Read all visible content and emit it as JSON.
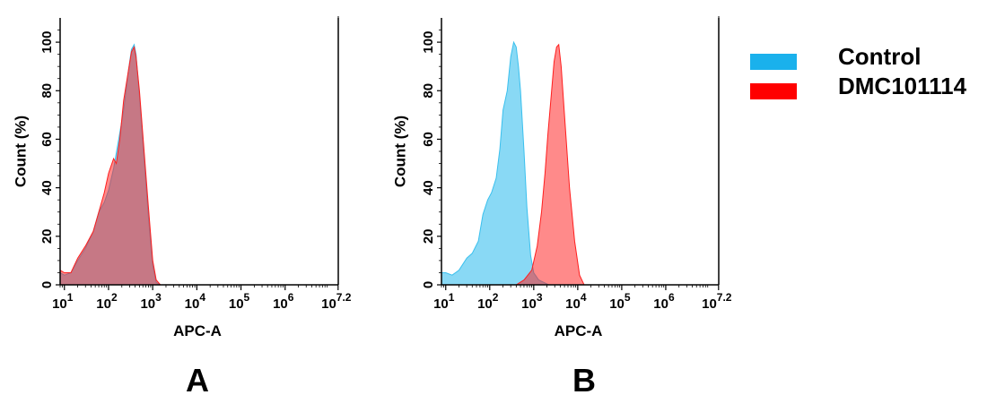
{
  "colors": {
    "control": "#3ac0ee",
    "dmc": "#ff1e1e",
    "overlap": "#7e8eab"
  },
  "legend": {
    "items": [
      {
        "label": "Control",
        "color": "#1ab1ec"
      },
      {
        "label": "DMC101114",
        "color": "#ff0000"
      }
    ]
  },
  "chart_data": [
    {
      "panel_label": "A",
      "type": "area",
      "xlabel": "APC-A",
      "ylabel": "Count  (%)",
      "x_scale": "log",
      "xlim": [
        8,
        16000000
      ],
      "ylim": [
        0,
        110
      ],
      "y_ticks": [
        0,
        20,
        40,
        60,
        80,
        100
      ],
      "x_ticks": [
        {
          "value": 10,
          "base": "10",
          "exp": "1"
        },
        {
          "value": 100,
          "base": "10",
          "exp": "2"
        },
        {
          "value": 1000,
          "base": "10",
          "exp": "3"
        },
        {
          "value": 10000,
          "base": "10",
          "exp": "4"
        },
        {
          "value": 100000,
          "base": "10",
          "exp": "5"
        },
        {
          "value": 1000000,
          "base": "10",
          "exp": "6"
        },
        {
          "value": 15848932,
          "base": "10",
          "exp": "7.2"
        }
      ],
      "series": [
        {
          "name": "Control",
          "x": [
            8,
            10,
            14,
            20,
            30,
            45,
            60,
            80,
            100,
            130,
            170,
            220,
            280,
            330,
            380,
            420,
            500,
            620,
            800,
            1000,
            1200,
            1500
          ],
          "y": [
            5,
            4,
            5,
            10,
            15,
            22,
            30,
            34,
            39,
            48,
            60,
            72,
            88,
            97,
            99,
            95,
            78,
            55,
            28,
            8,
            1,
            0
          ]
        },
        {
          "name": "DMC101114",
          "x": [
            8,
            10,
            14,
            20,
            30,
            45,
            60,
            80,
            100,
            130,
            150,
            180,
            220,
            280,
            330,
            380,
            420,
            500,
            620,
            800,
            1000,
            1200,
            1500
          ],
          "y": [
            6,
            5,
            5,
            11,
            16,
            22,
            30,
            38,
            46,
            52,
            50,
            60,
            76,
            88,
            96,
            98,
            94,
            80,
            58,
            32,
            10,
            2,
            0
          ]
        }
      ]
    },
    {
      "panel_label": "B",
      "type": "area",
      "xlabel": "APC-A",
      "ylabel": "Count  (%)",
      "x_scale": "log",
      "xlim": [
        8,
        16000000
      ],
      "ylim": [
        0,
        110
      ],
      "y_ticks": [
        0,
        20,
        40,
        60,
        80,
        100
      ],
      "x_ticks": [
        {
          "value": 10,
          "base": "10",
          "exp": "1"
        },
        {
          "value": 100,
          "base": "10",
          "exp": "2"
        },
        {
          "value": 1000,
          "base": "10",
          "exp": "3"
        },
        {
          "value": 10000,
          "base": "10",
          "exp": "4"
        },
        {
          "value": 100000,
          "base": "10",
          "exp": "5"
        },
        {
          "value": 1000000,
          "base": "10",
          "exp": "6"
        },
        {
          "value": 15848932,
          "base": "10",
          "exp": "7.2"
        }
      ],
      "series": [
        {
          "name": "Control",
          "x": [
            8,
            10,
            14,
            20,
            30,
            40,
            55,
            70,
            90,
            110,
            140,
            170,
            200,
            250,
            300,
            350,
            400,
            450,
            500,
            600,
            700,
            850,
            1000,
            1300,
            1700,
            2200
          ],
          "y": [
            5,
            5,
            4,
            6,
            11,
            13,
            18,
            29,
            35,
            38,
            44,
            56,
            72,
            80,
            94,
            100,
            98,
            90,
            80,
            55,
            32,
            12,
            5,
            2,
            1,
            0
          ]
        },
        {
          "name": "DMC101114",
          "x": [
            400,
            600,
            900,
            1200,
            1500,
            1800,
            2100,
            2500,
            2900,
            3300,
            3700,
            4200,
            5000,
            6500,
            8500,
            11000,
            14000
          ],
          "y": [
            0,
            2,
            6,
            16,
            30,
            46,
            62,
            78,
            92,
            98,
            99,
            90,
            70,
            40,
            18,
            4,
            0
          ]
        }
      ]
    }
  ]
}
